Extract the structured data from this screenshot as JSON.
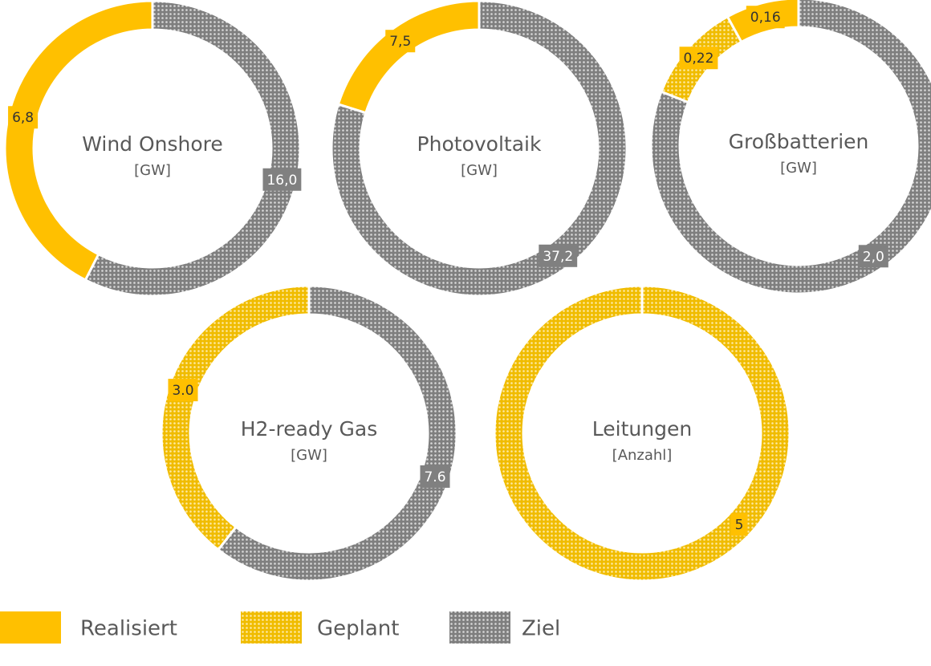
{
  "chart_data": [
    {
      "type": "pie",
      "title": "Wind Onshore",
      "unit": "[GW]",
      "categories": [
        "Realisiert"
      ],
      "values": [
        6.8
      ],
      "value_labels": [
        "6,8"
      ],
      "target": 16.0,
      "target_label": "16,0"
    },
    {
      "type": "pie",
      "title": "Photovoltaik",
      "unit": "[GW]",
      "categories": [
        "Realisiert"
      ],
      "values": [
        7.5
      ],
      "value_labels": [
        "7,5"
      ],
      "target": 37.2,
      "target_label": "37,2"
    },
    {
      "type": "pie",
      "title": "Großbatterien",
      "unit": "[GW]",
      "categories": [
        "Realisiert",
        "Geplant"
      ],
      "values": [
        0.16,
        0.22
      ],
      "value_labels": [
        "0,16",
        "0,22"
      ],
      "target": 2.0,
      "target_label": "2,0"
    },
    {
      "type": "pie",
      "title": "H2-ready Gas",
      "unit": "[GW]",
      "categories": [
        "Geplant"
      ],
      "values": [
        3.0
      ],
      "value_labels": [
        "3.0"
      ],
      "target": 7.6,
      "target_label": "7.6"
    },
    {
      "type": "pie",
      "title": "Leitungen",
      "unit": "[Anzahl]",
      "categories": [
        "Geplant"
      ],
      "values": [
        5
      ],
      "value_labels": [
        "5"
      ]
    }
  ],
  "legend": [
    {
      "name": "Realisiert",
      "color": "#ffc000",
      "pattern": "solid"
    },
    {
      "name": "Geplant",
      "color": "#f5c000",
      "pattern": "dots"
    },
    {
      "name": "Ziel",
      "color": "#858585",
      "pattern": "dots"
    }
  ],
  "target_category": "Ziel"
}
